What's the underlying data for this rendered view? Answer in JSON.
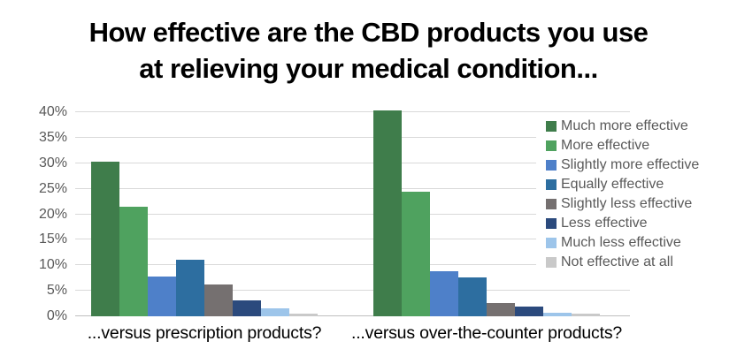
{
  "title": {
    "line1": "How effective are the CBD products you use",
    "line2": "at relieving your medical condition..."
  },
  "chart_data": {
    "type": "bar",
    "title": "How effective are the CBD products you use at relieving your medical condition...",
    "categories": [
      "...versus prescription products?",
      "...versus over-the-counter products?"
    ],
    "series": [
      {
        "name": "Much more effective",
        "color": "#3f7d4b",
        "values": [
          30.3,
          40.3
        ]
      },
      {
        "name": "More effective",
        "color": "#4fa25f",
        "values": [
          21.5,
          24.5
        ]
      },
      {
        "name": "Slightly more effective",
        "color": "#4e80c9",
        "values": [
          7.8,
          8.9
        ]
      },
      {
        "name": "Equally effective",
        "color": "#2d6ea0",
        "values": [
          11.0,
          7.7
        ]
      },
      {
        "name": "Slightly less effective",
        "color": "#757070",
        "values": [
          6.3,
          2.6
        ]
      },
      {
        "name": "Less effective",
        "color": "#2b4a7d",
        "values": [
          3.1,
          1.9
        ]
      },
      {
        "name": "Much less effective",
        "color": "#9dc5ea",
        "values": [
          1.5,
          0.7
        ]
      },
      {
        "name": "Not effective at all",
        "color": "#c9c9c9",
        "values": [
          0.5,
          0.6
        ]
      }
    ],
    "xlabel": "",
    "ylabel": "",
    "yticks": [
      "0%",
      "5%",
      "10%",
      "15%",
      "20%",
      "25%",
      "30%",
      "35%",
      "40%"
    ],
    "ylim": [
      0,
      40
    ],
    "grid": true,
    "legend_position": "right-overlay"
  },
  "colors": {
    "grid": "#d9d9d9",
    "axis_line": "#bfbfbf",
    "tick_text": "#595959",
    "legend_text": "#595959",
    "title_text": "#000000",
    "category_text": "#000000",
    "background": "#ffffff"
  }
}
